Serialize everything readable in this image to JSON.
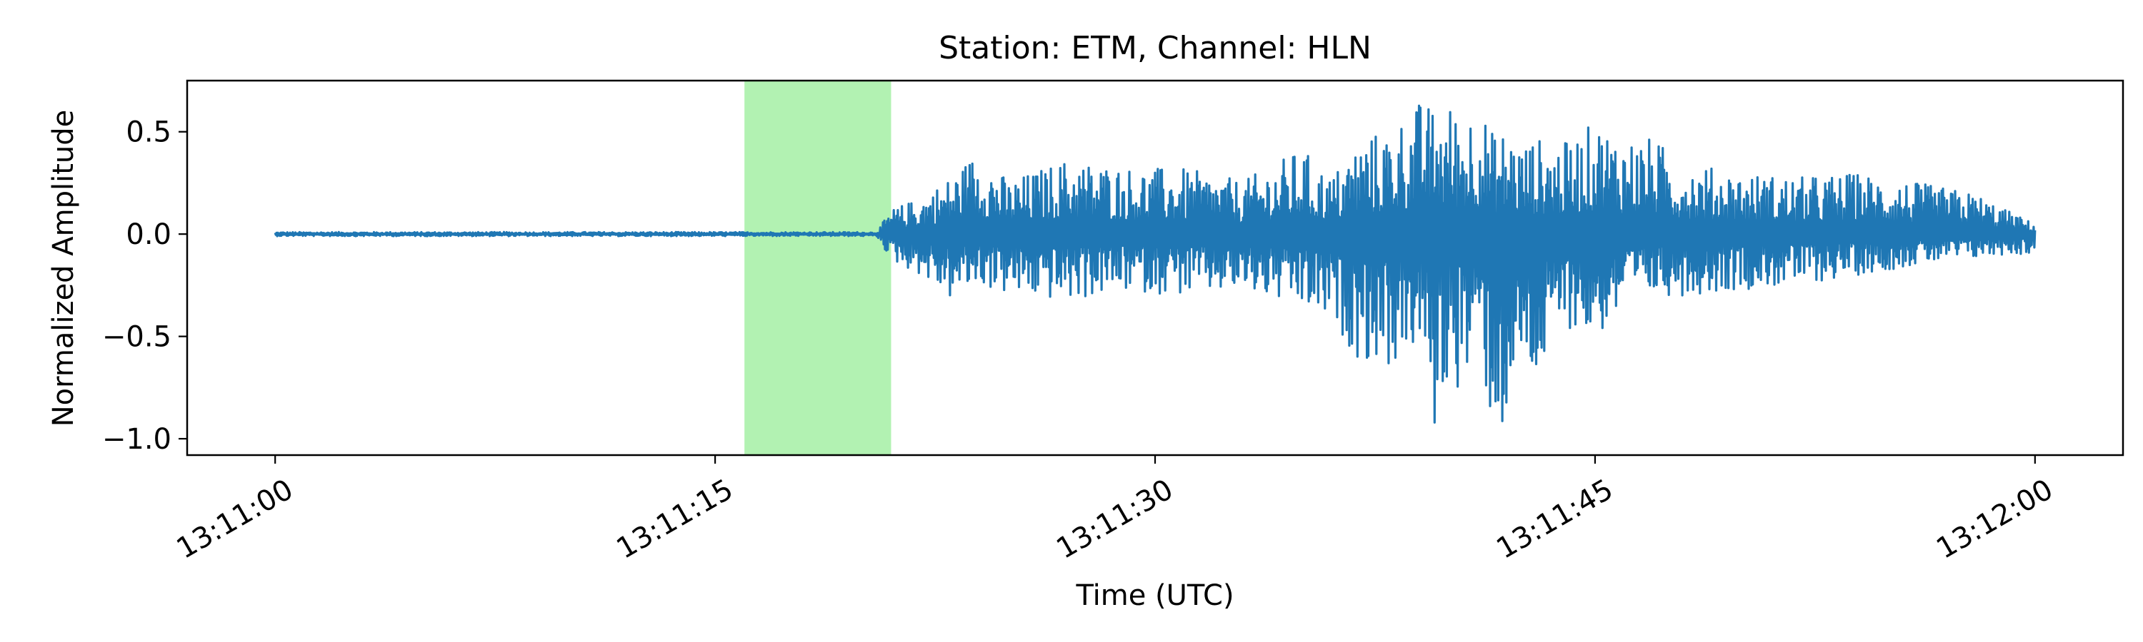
{
  "chart_data": {
    "type": "line",
    "title": "Station: ETM, Channel: HLN",
    "xlabel": "Time (UTC)",
    "ylabel": "Normalized Amplitude",
    "x_unit": "seconds after 13:11:00 UTC",
    "xlim": [
      -3,
      63
    ],
    "ylim": [
      -1.08,
      0.75
    ],
    "x_ticks": [
      0,
      15,
      30,
      45,
      60
    ],
    "x_tick_labels": [
      "13:11:00",
      "13:11:15",
      "13:11:30",
      "13:11:45",
      "13:12:00"
    ],
    "y_ticks": [
      0.5,
      0.0,
      -0.5,
      -1.0
    ],
    "y_tick_labels": [
      "0.5",
      "0.0",
      "−0.5",
      "−1.0"
    ],
    "grid": false,
    "highlight_span": {
      "x_start": 16,
      "x_end": 21,
      "color": "#b2f2b2"
    },
    "series": [
      {
        "color": "#1f77b4",
        "x": [
          0,
          5,
          10,
          15,
          20.5,
          20.6,
          21,
          22,
          23,
          24,
          25,
          27,
          29,
          31,
          33,
          35,
          36,
          37,
          38,
          39,
          39.5,
          40,
          40.5,
          41,
          41.5,
          42,
          42.5,
          43,
          44,
          45,
          46,
          47,
          48,
          50,
          52,
          54,
          56,
          58,
          59,
          60
        ],
        "peak": [
          0.01,
          0.01,
          0.01,
          0.01,
          0.01,
          0.03,
          0.12,
          0.18,
          0.28,
          0.42,
          0.26,
          0.37,
          0.33,
          0.32,
          0.26,
          0.42,
          0.28,
          0.47,
          0.52,
          0.65,
          0.62,
          0.64,
          0.6,
          0.66,
          0.5,
          0.52,
          0.45,
          0.47,
          0.45,
          0.55,
          0.48,
          0.47,
          0.35,
          0.3,
          0.28,
          0.3,
          0.25,
          0.2,
          0.12,
          0.05
        ],
        "trough": [
          -0.01,
          -0.01,
          -0.01,
          -0.01,
          -0.01,
          -0.03,
          -0.13,
          -0.2,
          -0.32,
          -0.25,
          -0.3,
          -0.33,
          -0.28,
          -0.3,
          -0.28,
          -0.37,
          -0.44,
          -0.62,
          -0.66,
          -0.55,
          -1.0,
          -0.72,
          -0.78,
          -0.55,
          -0.97,
          -0.99,
          -0.65,
          -0.75,
          -0.45,
          -0.52,
          -0.37,
          -0.3,
          -0.3,
          -0.27,
          -0.25,
          -0.2,
          -0.15,
          -0.12,
          -0.1,
          -0.1
        ]
      }
    ]
  }
}
